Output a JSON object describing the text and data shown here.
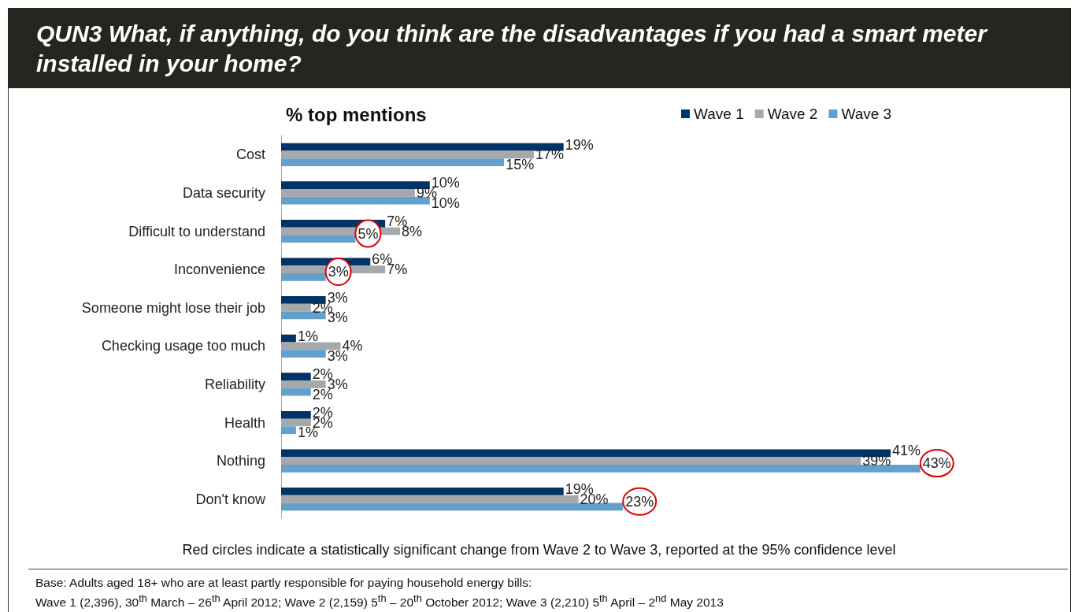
{
  "chart_data": {
    "type": "bar",
    "orientation": "horizontal",
    "title": "QUN3  What, if anything, do you think are the disadvantages if you had a smart meter installed in your home?",
    "subtitle": "% top mentions",
    "categories": [
      "Cost",
      "Data security",
      "Difficult to understand",
      "Inconvenience",
      "Someone might lose their job",
      "Checking usage too much",
      "Reliability",
      "Health",
      "Nothing",
      "Don't know"
    ],
    "series": [
      {
        "name": "Wave 1",
        "color": "#003366",
        "values": [
          19,
          10,
          7,
          6,
          3,
          1,
          2,
          2,
          41,
          19
        ],
        "value_labels": [
          "19%",
          "10%",
          "7%",
          "6%",
          "3%",
          "1%",
          "2%",
          "2%",
          "41%",
          "19%"
        ]
      },
      {
        "name": "Wave 2",
        "color": "#a6a8ab",
        "values": [
          17,
          9,
          8,
          7,
          2,
          4,
          3,
          2,
          39,
          20
        ],
        "value_labels": [
          "17%",
          "9%",
          "8%",
          "7%",
          "2%",
          "4%",
          "3%",
          "2%",
          "39%",
          "20%"
        ]
      },
      {
        "name": "Wave 3",
        "color": "#63a0cc",
        "values": [
          15,
          10,
          5,
          3,
          3,
          3,
          2,
          1,
          43,
          23
        ],
        "value_labels": [
          "15%",
          "10%",
          null,
          null,
          "3%",
          "3%",
          "2%",
          "1%",
          null,
          null
        ]
      }
    ],
    "legend": "top right",
    "annotations": [
      {
        "text": "5%",
        "x": 5,
        "y": "Difficult to understand"
      },
      {
        "text": "3%",
        "x": 3,
        "y": "Inconvenience"
      },
      {
        "text": "43%",
        "x": 43,
        "y": "Nothing"
      },
      {
        "text": "23%",
        "x": 23,
        "y": "Don't know"
      },
      "Red circles indicate a statistically significant change from Wave 2 to Wave 3, reported at the 95% confidence level",
      "Base:  Adults aged 18+ who are at least partly responsible for paying household energy bills:",
      "Wave 1 (2,396), 30$^{th}$ March – 26$^{th}$ April 2012; Wave 2 (2,159) 5$^{th}$ – 20$^{th}$ October 2012; Wave 3 (2,210) 5$^{th}$ April – 2$^{nd}$ May 2013"
    ]
  }
}
